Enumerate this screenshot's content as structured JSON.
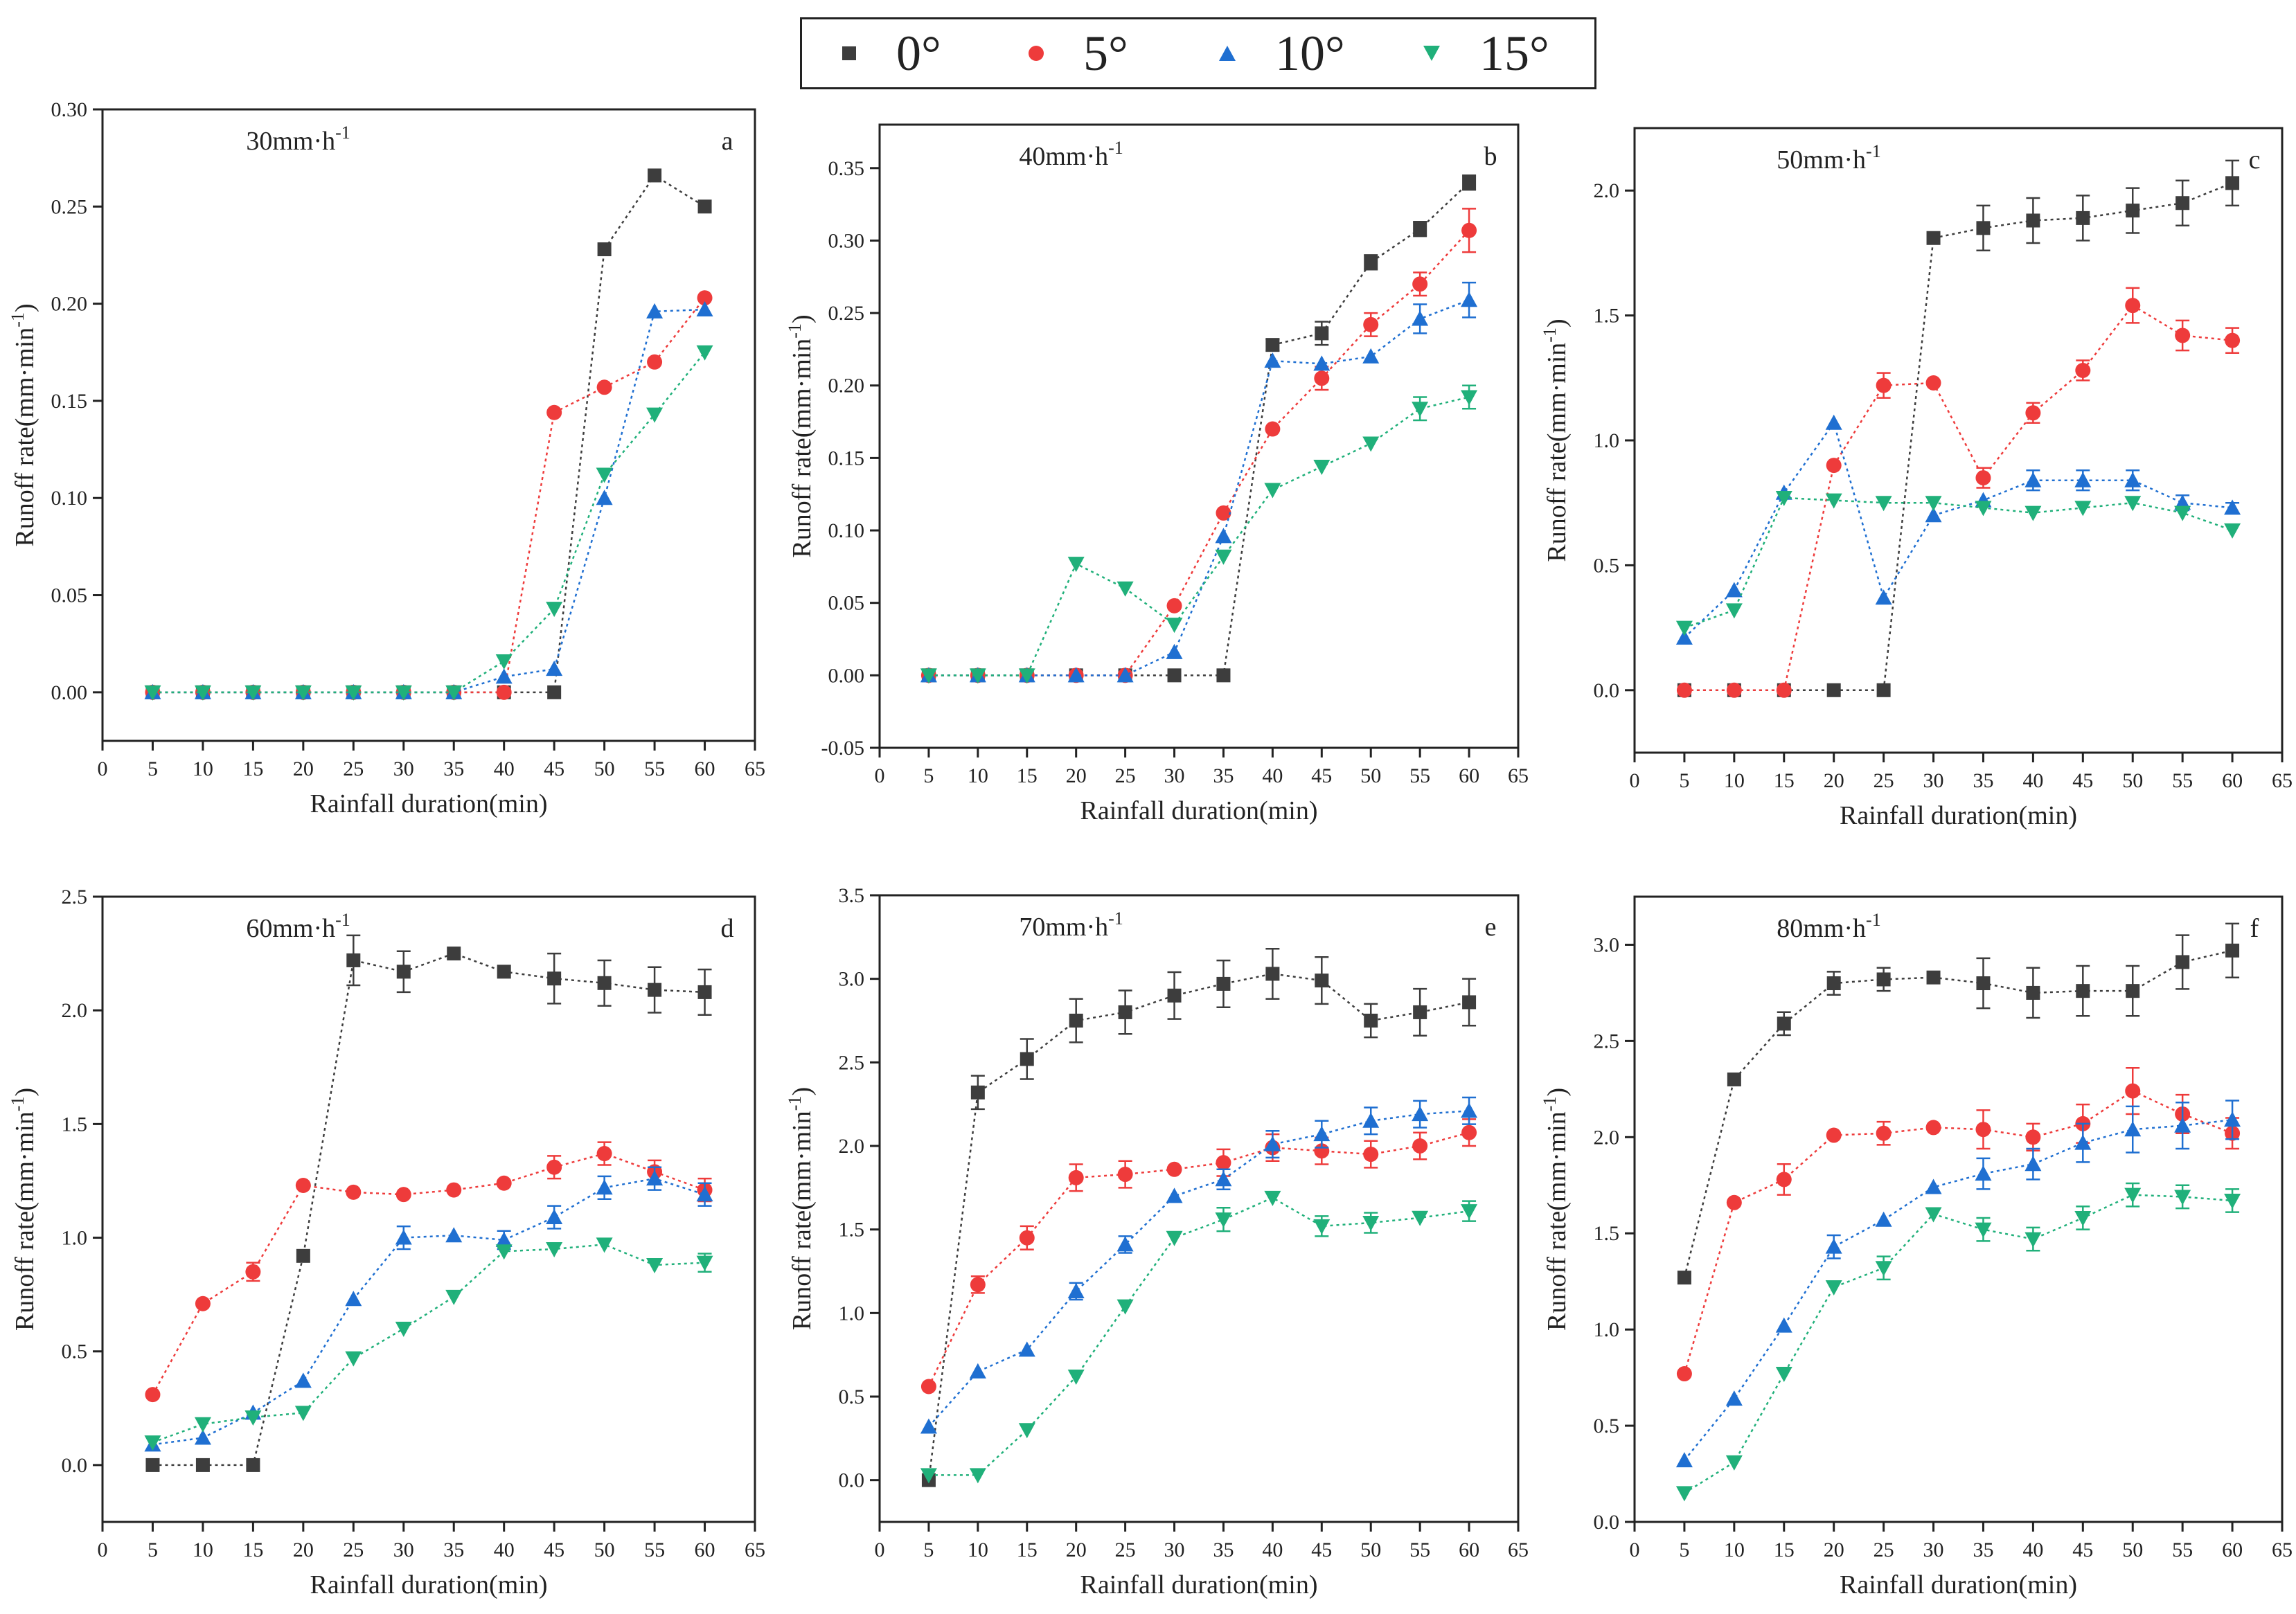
{
  "legend": [
    {
      "label": "0°",
      "color": "#3d3d3d",
      "marker": "square"
    },
    {
      "label": "5°",
      "color": "#ee3b3b",
      "marker": "circle"
    },
    {
      "label": "10°",
      "color": "#1f6fd1",
      "marker": "triangle-up"
    },
    {
      "label": "15°",
      "color": "#20b07a",
      "marker": "triangle-down"
    }
  ],
  "chart_data": [
    {
      "type": "scatter",
      "panel": "a",
      "title": "30mm·h",
      "title_sup": "-1",
      "xlabel": "Rainfall duration(min)",
      "ylabel": "Runoff rate(mm·min",
      "ylabel_sup": "-1",
      "ylabel_end": ")",
      "xlim": [
        0,
        65
      ],
      "ylim": [
        -0.025,
        0.3
      ],
      "xticks": [
        "0",
        "5",
        "10",
        "15",
        "20",
        "25",
        "30",
        "35",
        "40",
        "45",
        "50",
        "55",
        "60",
        "65"
      ],
      "yticks": [
        "0.00",
        "0.05",
        "0.10",
        "0.15",
        "0.20",
        "0.25",
        "0.30"
      ],
      "x": [
        5,
        10,
        15,
        20,
        25,
        30,
        35,
        40,
        45,
        50,
        55,
        60
      ],
      "series": [
        {
          "name": "0°",
          "values": [
            0,
            0,
            0,
            0,
            0,
            0,
            0,
            0,
            0,
            0.228,
            0.266,
            0.25
          ],
          "errors": [
            0,
            0,
            0,
            0,
            0,
            0,
            0,
            0,
            0,
            0,
            0,
            0
          ]
        },
        {
          "name": "5°",
          "values": [
            0,
            0,
            0,
            0,
            0,
            0,
            0,
            0,
            0.144,
            0.157,
            0.17,
            0.203
          ],
          "errors": [
            0,
            0,
            0,
            0,
            0,
            0,
            0,
            0,
            0,
            0,
            0,
            0
          ]
        },
        {
          "name": "10°",
          "values": [
            0,
            0,
            0,
            0,
            0,
            0,
            0,
            0.008,
            0.012,
            0.1,
            0.196,
            0.197
          ],
          "errors": [
            0,
            0,
            0,
            0,
            0,
            0,
            0,
            0,
            0,
            0,
            0,
            0
          ]
        },
        {
          "name": "15°",
          "values": [
            0,
            0,
            0,
            0,
            0,
            0,
            0,
            0.016,
            0.043,
            0.112,
            0.143,
            0.175
          ],
          "errors": [
            0,
            0,
            0,
            0,
            0,
            0,
            0,
            0,
            0,
            0,
            0,
            0
          ]
        }
      ]
    },
    {
      "type": "scatter",
      "panel": "b",
      "title": "40mm·h",
      "title_sup": "-1",
      "xlabel": "Rainfall duration(min)",
      "ylabel": "Runoff rate(mm·min",
      "ylabel_sup": "-1",
      "ylabel_end": ")",
      "xlim": [
        0,
        65
      ],
      "ylim": [
        -0.05,
        0.38
      ],
      "xticks": [
        "0",
        "5",
        "10",
        "15",
        "20",
        "25",
        "30",
        "35",
        "40",
        "45",
        "50",
        "55",
        "60",
        "65"
      ],
      "yticks": [
        "-0.05",
        "0.00",
        "0.05",
        "0.10",
        "0.15",
        "0.20",
        "0.25",
        "0.30",
        "0.35"
      ],
      "x": [
        5,
        10,
        15,
        20,
        25,
        30,
        35,
        40,
        45,
        50,
        55,
        60
      ],
      "series": [
        {
          "name": "0°",
          "values": [
            0,
            0,
            0,
            0,
            0,
            0,
            0,
            0.228,
            0.236,
            0.285,
            0.308,
            0.34
          ],
          "errors": [
            0,
            0,
            0,
            0,
            0,
            0,
            0,
            0.004,
            0.008,
            0.005,
            0.005,
            0.005
          ]
        },
        {
          "name": "5°",
          "values": [
            0,
            0,
            0,
            0,
            0,
            0.048,
            0.112,
            0.17,
            0.205,
            0.242,
            0.27,
            0.307
          ],
          "errors": [
            0,
            0,
            0,
            0,
            0,
            0,
            0,
            0,
            0.008,
            0.008,
            0.008,
            0.015
          ]
        },
        {
          "name": "10°",
          "values": [
            0,
            0,
            0,
            0,
            0,
            0.016,
            0.096,
            0.217,
            0.215,
            0.22,
            0.246,
            0.259
          ],
          "errors": [
            0,
            0,
            0,
            0,
            0,
            0,
            0,
            0,
            0,
            0,
            0.01,
            0.012
          ]
        },
        {
          "name": "15°",
          "values": [
            0,
            0,
            0,
            0.077,
            0.06,
            0.035,
            0.082,
            0.128,
            0.144,
            0.16,
            0.184,
            0.192
          ],
          "errors": [
            0,
            0,
            0,
            0,
            0,
            0,
            0,
            0,
            0,
            0,
            0.008,
            0.008
          ]
        }
      ]
    },
    {
      "type": "scatter",
      "panel": "c",
      "title": "50mm·h",
      "title_sup": "-1",
      "xlabel": "Rainfall duration(min)",
      "ylabel": "Runoff rate(mm·min",
      "ylabel_sup": "-1",
      "ylabel_end": ")",
      "xlim": [
        0,
        65
      ],
      "ylim": [
        -0.25,
        2.25
      ],
      "xticks": [
        "0",
        "5",
        "10",
        "15",
        "20",
        "25",
        "30",
        "35",
        "40",
        "45",
        "50",
        "55",
        "60",
        "65"
      ],
      "yticks": [
        "0.0",
        "0.5",
        "1.0",
        "1.5",
        "2.0"
      ],
      "x": [
        5,
        10,
        15,
        20,
        25,
        30,
        35,
        40,
        45,
        50,
        55,
        60
      ],
      "series": [
        {
          "name": "0°",
          "values": [
            0,
            0,
            0,
            0,
            0,
            1.81,
            1.85,
            1.88,
            1.89,
            1.92,
            1.95,
            2.03
          ],
          "errors": [
            0,
            0,
            0,
            0,
            0,
            0,
            0.09,
            0.09,
            0.09,
            0.09,
            0.09,
            0.09
          ]
        },
        {
          "name": "5°",
          "values": [
            0,
            0,
            0,
            0.9,
            1.22,
            1.23,
            0.85,
            1.11,
            1.28,
            1.54,
            1.42,
            1.4
          ],
          "errors": [
            0,
            0,
            0,
            0,
            0.05,
            0,
            0.04,
            0.04,
            0.04,
            0.07,
            0.06,
            0.05
          ]
        },
        {
          "name": "10°",
          "values": [
            0.21,
            0.4,
            0.79,
            1.07,
            0.37,
            0.7,
            0.76,
            0.84,
            0.84,
            0.84,
            0.75,
            0.73
          ],
          "errors": [
            0,
            0,
            0,
            0,
            0,
            0,
            0,
            0.04,
            0.04,
            0.04,
            0.03,
            0.02
          ]
        },
        {
          "name": "15°",
          "values": [
            0.25,
            0.32,
            0.77,
            0.76,
            0.75,
            0.75,
            0.73,
            0.71,
            0.73,
            0.75,
            0.71,
            0.64
          ],
          "errors": [
            0,
            0,
            0,
            0,
            0,
            0,
            0,
            0,
            0,
            0,
            0,
            0
          ]
        }
      ]
    },
    {
      "type": "scatter",
      "panel": "d",
      "title": "60mm·h",
      "title_sup": "-1",
      "xlabel": "Rainfall duration(min)",
      "ylabel": "Runoff rate(mm·min",
      "ylabel_sup": "-1",
      "ylabel_end": ")",
      "xlim": [
        0,
        65
      ],
      "ylim": [
        -0.25,
        2.5
      ],
      "xticks": [
        "0",
        "5",
        "10",
        "15",
        "20",
        "25",
        "30",
        "35",
        "40",
        "45",
        "50",
        "55",
        "60",
        "65"
      ],
      "yticks": [
        "0.0",
        "0.5",
        "1.0",
        "1.5",
        "2.0",
        "2.5"
      ],
      "x": [
        5,
        10,
        15,
        20,
        25,
        30,
        35,
        40,
        45,
        50,
        55,
        60
      ],
      "series": [
        {
          "name": "0°",
          "values": [
            0,
            0,
            0,
            0.92,
            2.22,
            2.17,
            2.25,
            2.17,
            2.14,
            2.12,
            2.09,
            2.08
          ],
          "errors": [
            0,
            0,
            0,
            0,
            0.11,
            0.09,
            0,
            0,
            0.11,
            0.1,
            0.1,
            0.1
          ]
        },
        {
          "name": "5°",
          "values": [
            0.31,
            0.71,
            0.85,
            1.23,
            1.2,
            1.19,
            1.21,
            1.24,
            1.31,
            1.37,
            1.29,
            1.21
          ],
          "errors": [
            0,
            0,
            0.04,
            0,
            0,
            0,
            0,
            0,
            0.05,
            0.05,
            0.05,
            0.05
          ]
        },
        {
          "name": "10°",
          "values": [
            0.09,
            0.12,
            0.23,
            0.37,
            0.73,
            1.0,
            1.01,
            0.99,
            1.09,
            1.22,
            1.26,
            1.19
          ],
          "errors": [
            0,
            0,
            0,
            0,
            0,
            0.05,
            0,
            0.04,
            0.05,
            0.05,
            0.05,
            0.05
          ]
        },
        {
          "name": "15°",
          "values": [
            0.1,
            0.18,
            0.21,
            0.23,
            0.47,
            0.6,
            0.74,
            0.94,
            0.95,
            0.97,
            0.88,
            0.89
          ],
          "errors": [
            0,
            0,
            0,
            0,
            0,
            0,
            0,
            0,
            0,
            0,
            0,
            0.04
          ]
        }
      ]
    },
    {
      "type": "scatter",
      "panel": "e",
      "title": "70mm·h",
      "title_sup": "-1",
      "xlabel": "Rainfall duration(min)",
      "ylabel": "Runoff rate(mm·min",
      "ylabel_sup": "-1",
      "ylabel_end": ")",
      "xlim": [
        0,
        65
      ],
      "ylim": [
        -0.25,
        3.5
      ],
      "xticks": [
        "0",
        "5",
        "10",
        "15",
        "20",
        "25",
        "30",
        "35",
        "40",
        "45",
        "50",
        "55",
        "60",
        "65"
      ],
      "yticks": [
        "0.0",
        "0.5",
        "1.0",
        "1.5",
        "2.0",
        "2.5",
        "3.0",
        "3.5"
      ],
      "x": [
        5,
        10,
        15,
        20,
        25,
        30,
        35,
        40,
        45,
        50,
        55,
        60
      ],
      "series": [
        {
          "name": "0°",
          "values": [
            0,
            2.32,
            2.52,
            2.75,
            2.8,
            2.9,
            2.97,
            3.03,
            2.99,
            2.75,
            2.8,
            2.86
          ],
          "errors": [
            0,
            0.1,
            0.12,
            0.13,
            0.13,
            0.14,
            0.14,
            0.15,
            0.14,
            0.1,
            0.14,
            0.14
          ]
        },
        {
          "name": "5°",
          "values": [
            0.56,
            1.17,
            1.45,
            1.81,
            1.83,
            1.86,
            1.9,
            1.99,
            1.97,
            1.95,
            2.0,
            2.08
          ],
          "errors": [
            0,
            0.05,
            0.07,
            0.08,
            0.08,
            0,
            0.08,
            0.08,
            0.08,
            0.08,
            0.08,
            0.08
          ]
        },
        {
          "name": "10°",
          "values": [
            0.32,
            0.65,
            0.78,
            1.13,
            1.41,
            1.7,
            1.8,
            2.01,
            2.07,
            2.15,
            2.19,
            2.21
          ],
          "errors": [
            0,
            0,
            0,
            0.05,
            0.05,
            0,
            0.06,
            0.08,
            0.08,
            0.08,
            0.08,
            0.08
          ]
        },
        {
          "name": "15°",
          "values": [
            0.03,
            0.03,
            0.3,
            0.62,
            1.04,
            1.45,
            1.56,
            1.69,
            1.52,
            1.54,
            1.57,
            1.61
          ],
          "errors": [
            0,
            0,
            0,
            0,
            0,
            0,
            0.07,
            0,
            0.06,
            0.06,
            0,
            0.06
          ]
        }
      ]
    },
    {
      "type": "scatter",
      "panel": "f",
      "title": "80mm·h",
      "title_sup": "-1",
      "xlabel": "Rainfall duration(min)",
      "ylabel": "Runoff rate(mm·min",
      "ylabel_sup": "-1",
      "ylabel_end": ")",
      "xlim": [
        0,
        65
      ],
      "ylim": [
        0,
        3.25
      ],
      "xticks": [
        "0",
        "5",
        "10",
        "15",
        "20",
        "25",
        "30",
        "35",
        "40",
        "45",
        "50",
        "55",
        "60",
        "65"
      ],
      "yticks": [
        "0.0",
        "0.5",
        "1.0",
        "1.5",
        "2.0",
        "2.5",
        "3.0"
      ],
      "x": [
        5,
        10,
        15,
        20,
        25,
        30,
        35,
        40,
        45,
        50,
        55,
        60
      ],
      "series": [
        {
          "name": "0°",
          "values": [
            1.27,
            2.3,
            2.59,
            2.8,
            2.82,
            2.83,
            2.8,
            2.75,
            2.76,
            2.76,
            2.91,
            2.97
          ],
          "errors": [
            0,
            0,
            0.06,
            0.06,
            0.06,
            0,
            0.13,
            0.13,
            0.13,
            0.13,
            0.14,
            0.14
          ]
        },
        {
          "name": "5°",
          "values": [
            0.77,
            1.66,
            1.78,
            2.01,
            2.02,
            2.05,
            2.04,
            2.0,
            2.07,
            2.24,
            2.12,
            2.02
          ],
          "errors": [
            0,
            0,
            0.08,
            0,
            0.06,
            0,
            0.1,
            0.07,
            0.1,
            0.12,
            0.1,
            0.08
          ]
        },
        {
          "name": "10°",
          "values": [
            0.32,
            0.64,
            1.02,
            1.43,
            1.57,
            1.74,
            1.81,
            1.86,
            1.97,
            2.04,
            2.06,
            2.09
          ],
          "errors": [
            0,
            0,
            0,
            0.06,
            0,
            0,
            0.08,
            0.08,
            0.1,
            0.12,
            0.12,
            0.1
          ]
        },
        {
          "name": "15°",
          "values": [
            0.15,
            0.31,
            0.77,
            1.22,
            1.32,
            1.6,
            1.52,
            1.47,
            1.58,
            1.7,
            1.69,
            1.67
          ],
          "errors": [
            0,
            0,
            0,
            0,
            0.06,
            0,
            0.06,
            0.06,
            0.06,
            0.06,
            0.06,
            0.06
          ]
        }
      ]
    }
  ]
}
